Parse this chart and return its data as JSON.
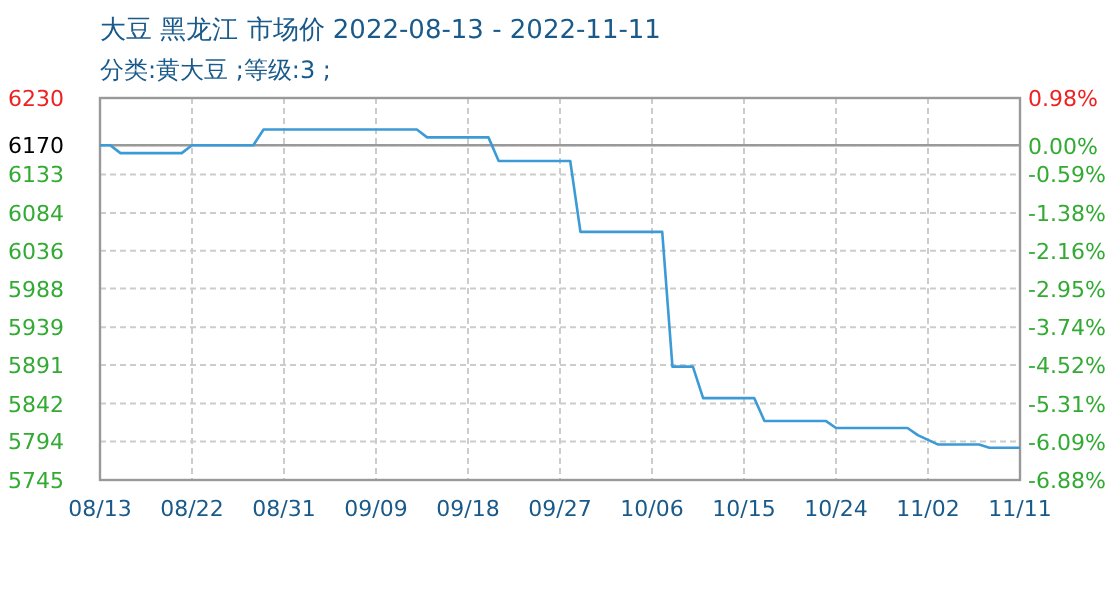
{
  "chart_data": {
    "type": "line",
    "title": "大豆 黑龙江 市场价 2022-08-13 - 2022-11-11",
    "subtitle": "分类:黄大豆 ;等级:3 ;",
    "x": [
      "2022-08-13",
      "2022-08-14",
      "2022-08-15",
      "2022-08-21",
      "2022-08-22",
      "2022-08-28",
      "2022-08-29",
      "2022-09-13",
      "2022-09-14",
      "2022-09-20",
      "2022-09-21",
      "2022-09-28",
      "2022-09-29",
      "2022-10-07",
      "2022-10-08",
      "2022-10-10",
      "2022-10-11",
      "2022-10-16",
      "2022-10-17",
      "2022-10-23",
      "2022-10-24",
      "2022-10-31",
      "2022-11-01",
      "2022-11-03",
      "2022-11-07",
      "2022-11-08",
      "2022-11-11"
    ],
    "series": [
      {
        "color": "#3c9bd6",
        "values": [
          6170,
          6170,
          6160,
          6160,
          6170,
          6170,
          6190,
          6190,
          6180,
          6180,
          6150,
          6150,
          6060,
          6060,
          5889,
          5889,
          5849,
          5849,
          5820,
          5820,
          5811,
          5811,
          5802,
          5790,
          5790,
          5786,
          5786
        ]
      }
    ],
    "xlim": [
      "2022-08-13",
      "2022-11-11"
    ],
    "xticks": [
      {
        "value": "2022-08-13",
        "label": "08/13"
      },
      {
        "value": "2022-08-22",
        "label": "08/22"
      },
      {
        "value": "2022-08-31",
        "label": "08/31"
      },
      {
        "value": "2022-09-09",
        "label": "09/09"
      },
      {
        "value": "2022-09-18",
        "label": "09/18"
      },
      {
        "value": "2022-09-27",
        "label": "09/27"
      },
      {
        "value": "2022-10-06",
        "label": "10/06"
      },
      {
        "value": "2022-10-15",
        "label": "10/15"
      },
      {
        "value": "2022-10-24",
        "label": "10/24"
      },
      {
        "value": "2022-11-02",
        "label": "11/02"
      },
      {
        "value": "2022-11-11",
        "label": "11/11"
      }
    ],
    "ylim": [
      5745,
      6230
    ],
    "yticks": [
      5745,
      5794,
      5842,
      5891,
      5939,
      5988,
      6036,
      6084,
      6133,
      6170,
      6230
    ],
    "y2lim": [
      -6.88,
      0.98
    ],
    "y2ticks": [
      {
        "value": -6.88,
        "label": "-6.88%"
      },
      {
        "value": -6.09,
        "label": "-6.09%"
      },
      {
        "value": -5.31,
        "label": "-5.31%"
      },
      {
        "value": -4.52,
        "label": "-4.52%"
      },
      {
        "value": -3.74,
        "label": "-3.74%"
      },
      {
        "value": -2.95,
        "label": "-2.95%"
      },
      {
        "value": -2.16,
        "label": "-2.16%"
      },
      {
        "value": -1.38,
        "label": "-1.38%"
      },
      {
        "value": -0.59,
        "label": "-0.59%"
      },
      {
        "value": 0,
        "label": "0.00%"
      },
      {
        "value": 0.98,
        "label": "0.98%"
      }
    ],
    "ref_lines": [
      {
        "axis": "y",
        "value": 6170,
        "color": "#999999"
      }
    ],
    "grid": true
  }
}
